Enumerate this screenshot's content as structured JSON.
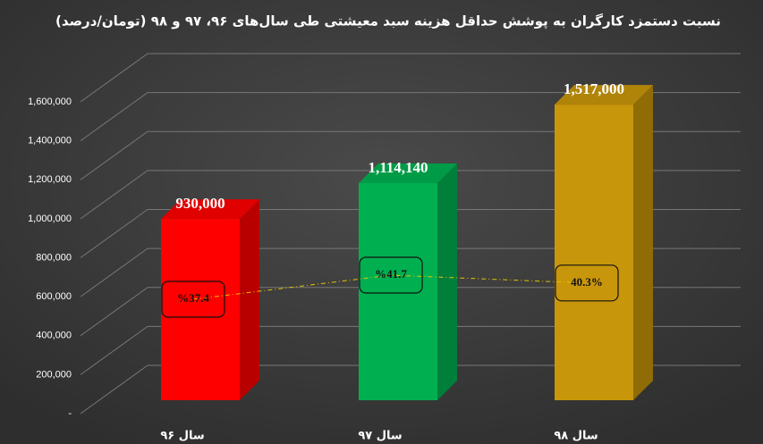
{
  "chart_data": {
    "type": "bar3d",
    "title": "نسبت دستمزد کارگران به پوشش حداقل هزینه سبد معیشتی طی سال‌های ۹۶، ۹۷ و ۹۸ (تومان/درصد)",
    "categories": [
      "سال ۹۶",
      "سال ۹۷",
      "سال ۹۸"
    ],
    "values": [
      930000,
      1114140,
      1517000
    ],
    "value_labels": [
      "930,000",
      "1,114,140",
      "1,517,000"
    ],
    "colors": [
      "#ff0000",
      "#00b050",
      "#c8960a"
    ],
    "ylim": [
      0,
      1600000
    ],
    "yticks": [
      {
        "value": 0,
        "label": "-"
      },
      {
        "value": 200000,
        "label": "200,000"
      },
      {
        "value": 400000,
        "label": "400,000"
      },
      {
        "value": 600000,
        "label": "600,000"
      },
      {
        "value": 800000,
        "label": "800,000"
      },
      {
        "value": 1000000,
        "label": "1,000,000"
      },
      {
        "value": 1200000,
        "label": "1,200,000"
      },
      {
        "value": 1400000,
        "label": "1,400,000"
      },
      {
        "value": 1600000,
        "label": "1,600,000"
      }
    ],
    "grid": true,
    "line": {
      "values": [
        37.4,
        41.7,
        40.3
      ],
      "value_labels": [
        "%37.4",
        "%41.7",
        "40.3%"
      ],
      "color": "#e6c200",
      "axis": "y2"
    },
    "y2lim": [
      19.4,
      75
    ]
  }
}
